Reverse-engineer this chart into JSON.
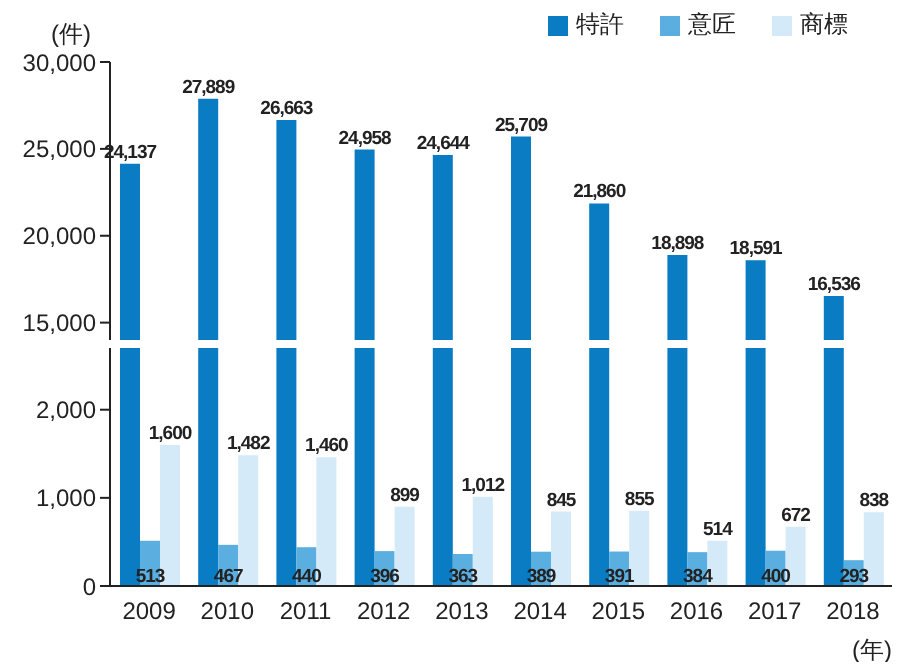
{
  "chart_data": [
    {
      "type": "bar",
      "ylabel": "(件)",
      "categories": [
        "2009",
        "2010",
        "2011",
        "2012",
        "2013",
        "2014",
        "2015",
        "2016",
        "2017",
        "2018"
      ],
      "series": [
        {
          "name": "特許",
          "color": "#0a7cc4",
          "values": [
            24137,
            27889,
            26663,
            24958,
            24644,
            25709,
            21860,
            18898,
            18591,
            16536
          ],
          "value_labels": [
            "24,137",
            "27,889",
            "26,663",
            "24,958",
            "24,644",
            "25,709",
            "21,860",
            "18,898",
            "18,591",
            "16,536"
          ]
        },
        {
          "name": "意匠",
          "color": "#5aaee0",
          "values": [
            null,
            null,
            null,
            null,
            null,
            null,
            null,
            null,
            null,
            null
          ]
        },
        {
          "name": "商標",
          "color": "#d4eaf8",
          "values": [
            null,
            null,
            null,
            null,
            null,
            null,
            null,
            null,
            null,
            null
          ]
        }
      ],
      "ylim": [
        14000,
        30000
      ],
      "yticks": [
        {
          "value": 15000,
          "label": "15,000"
        },
        {
          "value": 20000,
          "label": "20,000"
        },
        {
          "value": 25000,
          "label": "25,000"
        },
        {
          "value": 30000,
          "label": "30,000"
        }
      ],
      "legend": "top right",
      "tick_labels": "y"
    },
    {
      "type": "bar",
      "xlabel": "(年)",
      "categories": [
        "2009",
        "2010",
        "2011",
        "2012",
        "2013",
        "2014",
        "2015",
        "2016",
        "2017",
        "2018"
      ],
      "series": [
        {
          "values": [
            null,
            null,
            null,
            null,
            null,
            null,
            null,
            null,
            null,
            null
          ]
        },
        {
          "color": "#5aaee0",
          "values": [
            513,
            467,
            440,
            396,
            363,
            389,
            391,
            384,
            400,
            293
          ],
          "value_labels": [
            "513",
            "467",
            "440",
            "396",
            "363",
            "389",
            "391",
            "384",
            "400",
            "293"
          ]
        },
        {
          "color": "#d4eaf8",
          "values": [
            1600,
            1482,
            1460,
            899,
            1012,
            845,
            855,
            514,
            672,
            838
          ],
          "value_labels": [
            "1,600",
            "1,482",
            "1,460",
            "899",
            "1,012",
            "845",
            "855",
            "514",
            "672",
            "838"
          ]
        }
      ],
      "ylim": [
        0,
        2700
      ],
      "yticks": [
        0,
        {
          "value": 1000,
          "label": "1,000"
        },
        {
          "value": 2000,
          "label": "2,000"
        }
      ]
    }
  ]
}
